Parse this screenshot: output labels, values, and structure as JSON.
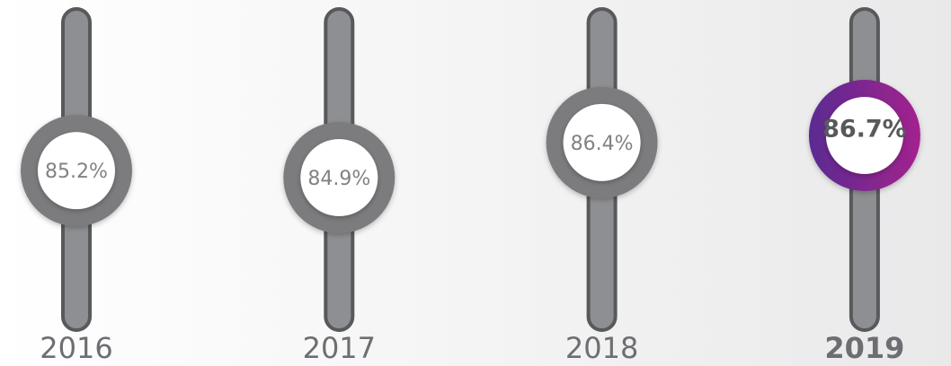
{
  "chart_data": {
    "type": "slider",
    "categories": [
      "2016",
      "2017",
      "2018",
      "2019"
    ],
    "values": [
      85.2,
      84.9,
      86.4,
      86.7
    ],
    "value_labels": [
      "85.2%",
      "84.9%",
      "86.4%",
      "86.7%"
    ],
    "color": "#7b7c7f",
    "highlight": "2019",
    "highlight_colors": [
      "#5b2a91",
      "#a3238e"
    ]
  }
}
